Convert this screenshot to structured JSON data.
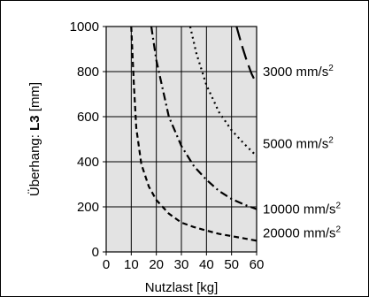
{
  "chart_data": {
    "type": "line",
    "title": "",
    "xlabel": "Nutzlast [kg]",
    "ylabel_prefix": "Überhang: ",
    "ylabel_bold": "L3",
    "ylabel_suffix": " [mm]",
    "xlim": [
      0,
      60
    ],
    "ylim": [
      0,
      1000
    ],
    "x_ticks": [
      0,
      10,
      20,
      30,
      40,
      50,
      60
    ],
    "y_ticks": [
      0,
      200,
      400,
      600,
      800,
      1000
    ],
    "grid": true,
    "series": [
      {
        "name": "3000 mm/s",
        "name_sup": "2",
        "dash": "16,7",
        "x": [
          52,
          54,
          56,
          58,
          60
        ],
        "y": [
          1000,
          920,
          850,
          790,
          745
        ]
      },
      {
        "name": "5000 mm/s",
        "name_sup": "2",
        "dash": "2,4",
        "x": [
          33.5,
          36,
          40,
          45,
          50,
          55,
          60
        ],
        "y": [
          1000,
          880,
          740,
          620,
          540,
          480,
          425
        ]
      },
      {
        "name": "10000 mm/s",
        "name_sup": "2",
        "dash": "9,4,2,4",
        "x": [
          18,
          20,
          25,
          30,
          35,
          40,
          45,
          50,
          55,
          60
        ],
        "y": [
          1000,
          850,
          600,
          470,
          380,
          320,
          270,
          235,
          210,
          190
        ]
      },
      {
        "name": "20000 mm/s",
        "name_sup": "2",
        "dash": "6,4",
        "x": [
          10,
          11,
          12,
          14,
          17,
          20,
          25,
          30,
          35,
          40,
          45,
          50,
          55,
          60
        ],
        "y": [
          1000,
          750,
          550,
          390,
          290,
          230,
          170,
          130,
          110,
          95,
          80,
          70,
          60,
          50
        ]
      }
    ],
    "series_label_y": [
      800,
      480,
      190,
      85
    ]
  }
}
